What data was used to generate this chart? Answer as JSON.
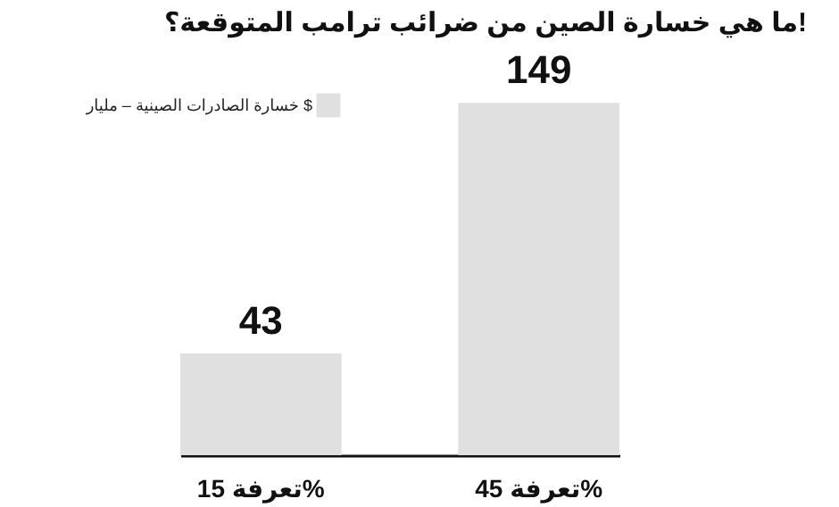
{
  "chart_data": {
    "type": "bar",
    "title": "ما هي خسارة الصين من ضرائب ترامب المتوقعة؟!",
    "categories": [
      "تعرفة 15%",
      "تعرفة 45%"
    ],
    "series": [
      {
        "name": "خسارة الصادرات الصينية – مليار $",
        "color": "#e0e0e1",
        "values": [
          43,
          149
        ]
      }
    ],
    "data_labels": true,
    "legend": "top left",
    "grid": false,
    "tick_labels": "x"
  }
}
